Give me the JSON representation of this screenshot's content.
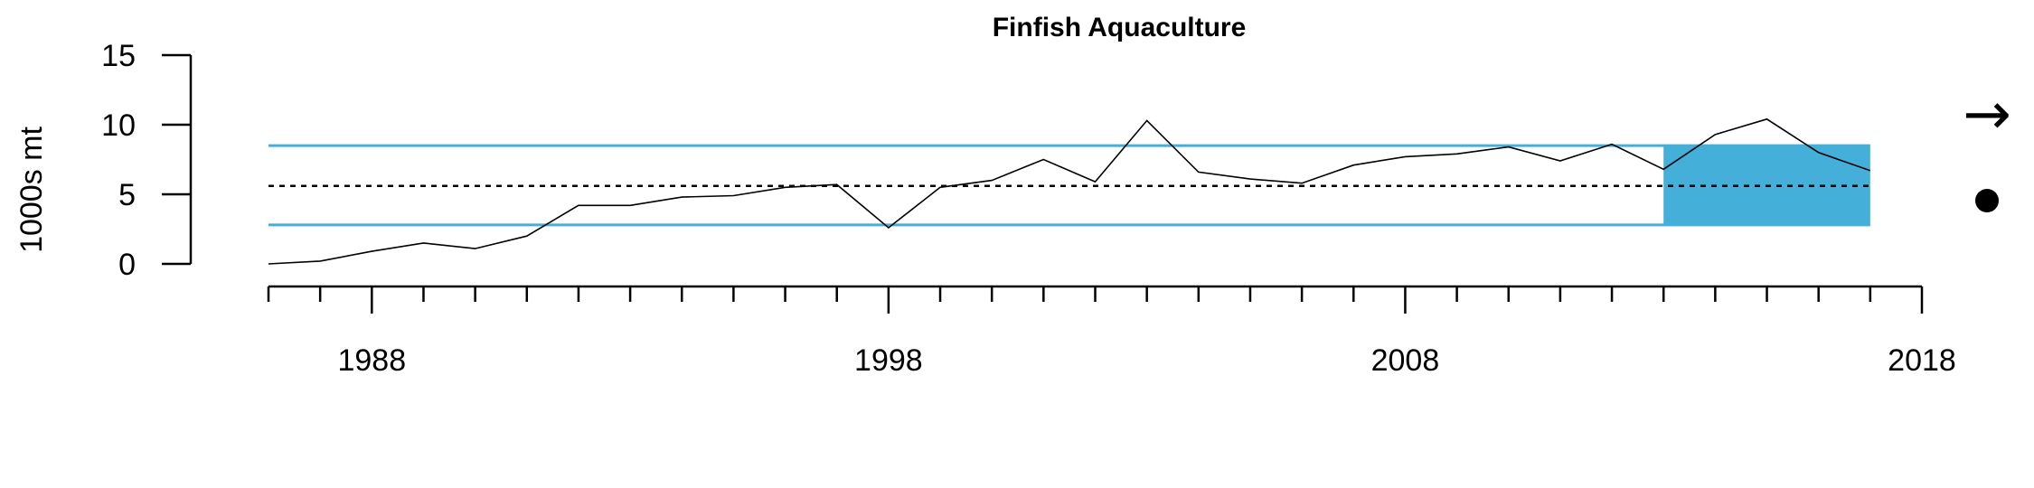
{
  "chart_data": {
    "type": "line",
    "title": "Finfish Aquaculture",
    "ylabel": "1000s mt",
    "xlabel": "",
    "ylim": [
      0,
      15
    ],
    "xlim": [
      1986,
      2018
    ],
    "yticks": [
      0,
      5,
      10,
      15
    ],
    "xticks_major": [
      1988,
      1998,
      2008,
      2018
    ],
    "x": [
      1986,
      1987,
      1988,
      1989,
      1990,
      1991,
      1992,
      1993,
      1994,
      1995,
      1996,
      1997,
      1998,
      1999,
      2000,
      2001,
      2002,
      2003,
      2004,
      2005,
      2006,
      2007,
      2008,
      2009,
      2010,
      2011,
      2012,
      2013,
      2014,
      2015,
      2016,
      2017
    ],
    "values": [
      0.0,
      0.2,
      0.9,
      1.5,
      1.1,
      2.0,
      4.2,
      4.2,
      4.8,
      4.9,
      5.5,
      5.7,
      2.6,
      5.5,
      6.0,
      7.5,
      5.9,
      10.3,
      6.6,
      6.1,
      5.8,
      7.1,
      7.7,
      7.9,
      8.4,
      7.4,
      8.6,
      6.8,
      9.3,
      10.4,
      8.0,
      6.7
    ],
    "mean": 5.6,
    "upper": 8.5,
    "lower": 2.8,
    "recent_window": [
      2013,
      2017
    ],
    "colors": {
      "band": "#44afd8",
      "line": "#000000"
    },
    "trend_symbol": "→",
    "status_symbol": "●"
  }
}
